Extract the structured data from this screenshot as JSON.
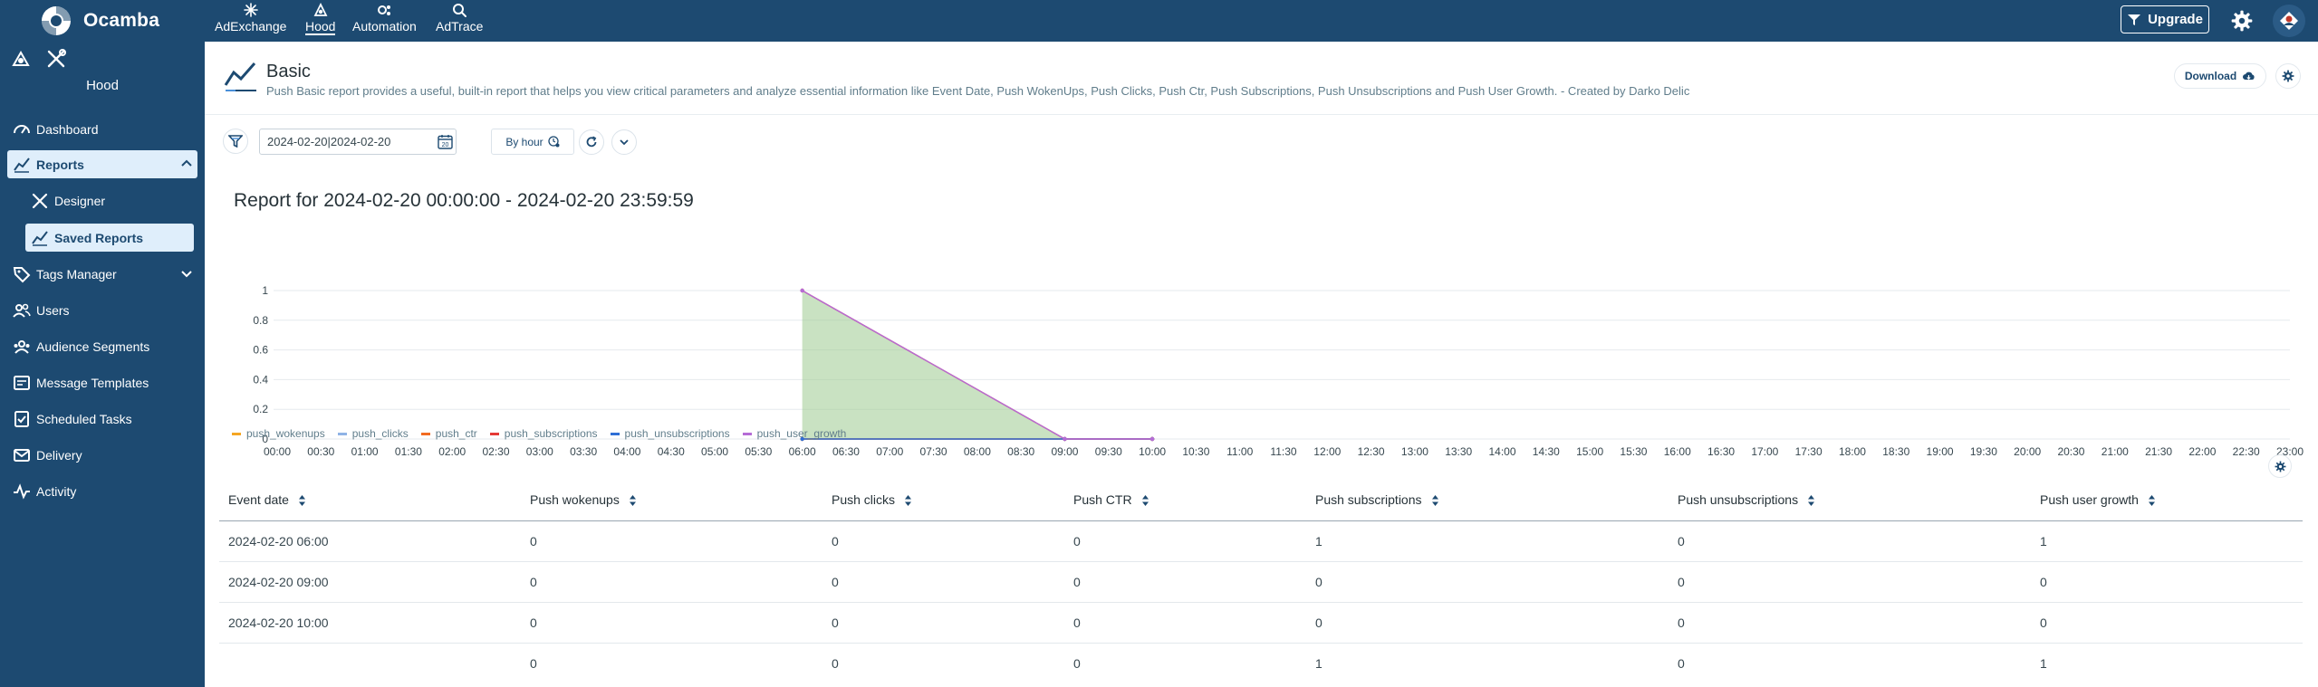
{
  "app": {
    "brand": "Ocamba",
    "nav": [
      {
        "label": "AdExchange",
        "icon": "sparkle-icon"
      },
      {
        "label": "Hood",
        "icon": "hood-icon"
      },
      {
        "label": "Automation",
        "icon": "automation-icon"
      },
      {
        "label": "AdTrace",
        "icon": "search-icon"
      }
    ],
    "upgrade_label": "Upgrade"
  },
  "sidebar": {
    "title": "Hood",
    "items": [
      {
        "label": "Dashboard",
        "icon": "dashboard-icon"
      },
      {
        "label": "Reports",
        "icon": "reports-icon"
      },
      {
        "label": "Designer",
        "icon": "designer-icon"
      },
      {
        "label": "Saved Reports",
        "icon": "saved-reports-icon"
      },
      {
        "label": "Tags Manager",
        "icon": "tags-icon"
      },
      {
        "label": "Users",
        "icon": "users-icon"
      },
      {
        "label": "Audience Segments",
        "icon": "audience-icon"
      },
      {
        "label": "Message Templates",
        "icon": "template-icon"
      },
      {
        "label": "Scheduled Tasks",
        "icon": "tasks-icon"
      },
      {
        "label": "Delivery",
        "icon": "delivery-icon"
      },
      {
        "label": "Activity",
        "icon": "activity-icon"
      }
    ]
  },
  "header": {
    "title": "Basic",
    "description": "Push Basic report provides a useful, built-in report that helps you view critical parameters and analyze essential information like Event Date, Push WokenUps, Push Clicks, Push Ctr, Push Subscriptions, Push Unsubscriptions and Push User Growth. - Created by Darko Delic",
    "download_label": "Download"
  },
  "filters": {
    "date_range": "2024-02-20|2024-02-20",
    "calendar_day": "20",
    "group_by": "By hour"
  },
  "report_heading": "Report for 2024-02-20 00:00:00 - 2024-02-20 23:59:59",
  "colors": {
    "push_wokenups": "#f5a623",
    "push_clicks": "#8fb3e6",
    "push_ctr": "#f26b21",
    "push_subscriptions": "#e53935",
    "push_unsubscriptions": "#2f6fd6",
    "push_user_growth": "#b56cd6"
  },
  "chart_data": {
    "type": "area",
    "x": [
      "00:00",
      "00:30",
      "01:00",
      "01:30",
      "02:00",
      "02:30",
      "03:00",
      "03:30",
      "04:00",
      "04:30",
      "05:00",
      "05:30",
      "06:00",
      "06:30",
      "07:00",
      "07:30",
      "08:00",
      "08:30",
      "09:00",
      "09:30",
      "10:00",
      "10:30",
      "11:00",
      "11:30",
      "12:00",
      "12:30",
      "13:00",
      "13:30",
      "14:00",
      "14:30",
      "15:00",
      "15:30",
      "16:00",
      "16:30",
      "17:00",
      "17:30",
      "18:00",
      "18:30",
      "19:00",
      "19:30",
      "20:00",
      "20:30",
      "21:00",
      "21:30",
      "22:00",
      "22:30",
      "23:00"
    ],
    "yticks": [
      "0",
      "0.2",
      "0.4",
      "0.6",
      "0.8",
      "1"
    ],
    "ylim": [
      0,
      1
    ],
    "series": [
      {
        "name": "push_wokenups",
        "points": [
          [
            "06:00",
            0
          ],
          [
            "09:00",
            0
          ],
          [
            "10:00",
            0
          ]
        ]
      },
      {
        "name": "push_clicks",
        "points": [
          [
            "06:00",
            0
          ],
          [
            "09:00",
            0
          ],
          [
            "10:00",
            0
          ]
        ]
      },
      {
        "name": "push_ctr",
        "points": [
          [
            "06:00",
            0
          ],
          [
            "09:00",
            0
          ],
          [
            "10:00",
            0
          ]
        ]
      },
      {
        "name": "push_subscriptions",
        "points": [
          [
            "06:00",
            1
          ],
          [
            "09:00",
            0
          ],
          [
            "10:00",
            0
          ]
        ]
      },
      {
        "name": "push_unsubscriptions",
        "points": [
          [
            "06:00",
            0
          ],
          [
            "09:00",
            0
          ],
          [
            "10:00",
            0
          ]
        ]
      },
      {
        "name": "push_user_growth",
        "points": [
          [
            "06:00",
            1
          ],
          [
            "09:00",
            0
          ],
          [
            "10:00",
            0
          ]
        ]
      }
    ],
    "legend": [
      "push_wokenups",
      "push_clicks",
      "push_ctr",
      "push_subscriptions",
      "push_unsubscriptions",
      "push_user_growth"
    ]
  },
  "table": {
    "columns": [
      "Event date",
      "Push wokenups",
      "Push clicks",
      "Push CTR",
      "Push subscriptions",
      "Push unsubscriptions",
      "Push user growth"
    ],
    "rows": [
      [
        "2024-02-20 06:00",
        "0",
        "0",
        "0",
        "1",
        "0",
        "1"
      ],
      [
        "2024-02-20 09:00",
        "0",
        "0",
        "0",
        "0",
        "0",
        "0"
      ],
      [
        "2024-02-20 10:00",
        "0",
        "0",
        "0",
        "0",
        "0",
        "0"
      ]
    ],
    "totals": [
      "",
      "0",
      "0",
      "0",
      "1",
      "0",
      "1"
    ]
  }
}
